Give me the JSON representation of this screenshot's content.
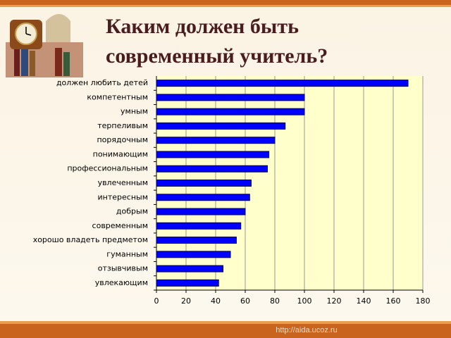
{
  "chart_data": {
    "type": "barh",
    "title": [
      "Каким должен быть",
      "современный учитель?"
    ],
    "categories": [
      "должен любить детей",
      "компетентным",
      "умным",
      "терпеливым",
      "порядочным",
      "понимающим",
      "профессиональным",
      "увлеченным",
      "интересным",
      "добрым",
      "современным",
      "хорошо владеть предметом",
      "гуманным",
      "отзывчивым",
      "увлекающим"
    ],
    "values": [
      170,
      100,
      100,
      87,
      80,
      76,
      75,
      64,
      63,
      60,
      57,
      54,
      50,
      45,
      42
    ],
    "color": "#0000ff",
    "xlim": [
      0,
      180
    ],
    "xticks": [
      0,
      20,
      40,
      60,
      80,
      100,
      120,
      140,
      160,
      180
    ],
    "grid": true
  },
  "footer": "http://aida.ucoz.ru"
}
